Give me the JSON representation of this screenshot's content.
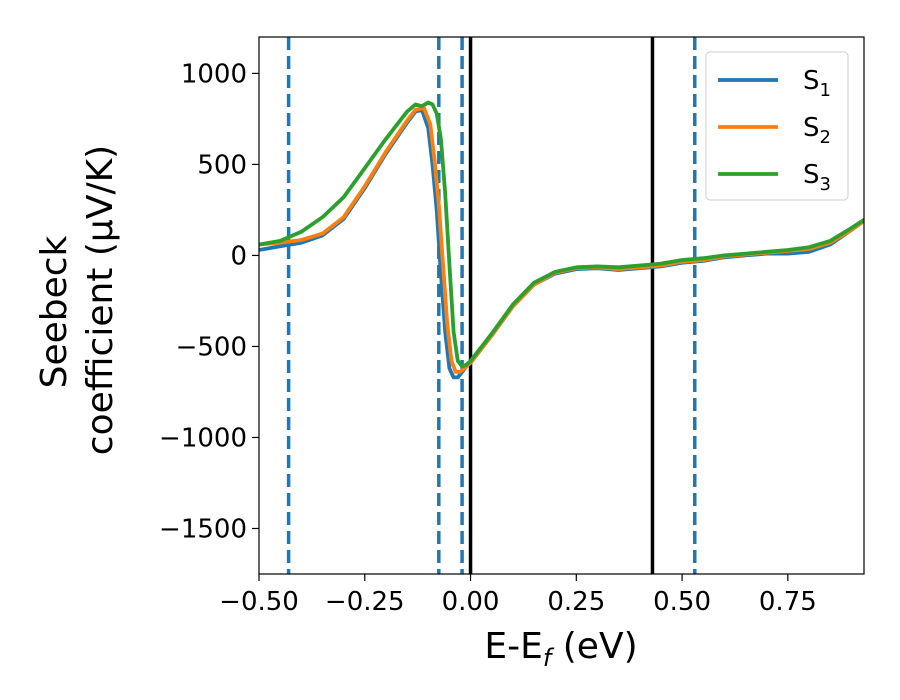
{
  "chart_data": {
    "type": "line",
    "title": "",
    "xlabel": "E-E",
    "xlabel_sub": "f",
    "xlabel_unit": " (eV)",
    "ylabel_line1": "Seebeck",
    "ylabel_line2": "coefficient  (μV/K)",
    "xlim": [
      -0.5,
      0.93
    ],
    "ylim": [
      -1750,
      1200
    ],
    "xticks": [
      -0.5,
      -0.25,
      0.0,
      0.25,
      0.5,
      0.75
    ],
    "xtick_labels": [
      "−0.50",
      "−0.25",
      "0.00",
      "0.25",
      "0.50",
      "0.75"
    ],
    "yticks": [
      1000,
      500,
      0,
      -500,
      -1000,
      -1500
    ],
    "ytick_labels": [
      "1000",
      "500",
      "0",
      "−500",
      "−1000",
      "−1500"
    ],
    "grid": false,
    "legend_position": "top-right",
    "series": [
      {
        "name": "S",
        "sub": "1",
        "color": "#1f77b4",
        "x": [
          -0.5,
          -0.45,
          -0.4,
          -0.35,
          -0.3,
          -0.25,
          -0.2,
          -0.15,
          -0.13,
          -0.115,
          -0.1,
          -0.09,
          -0.08,
          -0.07,
          -0.06,
          -0.05,
          -0.04,
          -0.03,
          -0.02,
          -0.01,
          0.0,
          0.05,
          0.1,
          0.15,
          0.2,
          0.25,
          0.3,
          0.35,
          0.4,
          0.45,
          0.5,
          0.55,
          0.6,
          0.65,
          0.7,
          0.75,
          0.8,
          0.85,
          0.9,
          0.93
        ],
        "y": [
          30,
          50,
          70,
          110,
          200,
          370,
          560,
          730,
          790,
          800,
          700,
          500,
          250,
          -100,
          -420,
          -620,
          -670,
          -670,
          -640,
          -610,
          -590,
          -440,
          -280,
          -160,
          -100,
          -75,
          -70,
          -80,
          -70,
          -60,
          -40,
          -30,
          -10,
          0,
          10,
          10,
          20,
          60,
          140,
          190
        ]
      },
      {
        "name": "S",
        "sub": "2",
        "color": "#ff7f0e",
        "x": [
          -0.5,
          -0.45,
          -0.4,
          -0.35,
          -0.3,
          -0.25,
          -0.2,
          -0.15,
          -0.13,
          -0.11,
          -0.095,
          -0.085,
          -0.075,
          -0.065,
          -0.055,
          -0.045,
          -0.035,
          -0.025,
          -0.015,
          0.0,
          0.05,
          0.1,
          0.15,
          0.2,
          0.25,
          0.3,
          0.35,
          0.4,
          0.45,
          0.5,
          0.55,
          0.6,
          0.65,
          0.7,
          0.75,
          0.8,
          0.85,
          0.9,
          0.93
        ],
        "y": [
          60,
          70,
          85,
          120,
          210,
          380,
          570,
          740,
          800,
          810,
          720,
          520,
          280,
          -50,
          -380,
          -580,
          -640,
          -640,
          -620,
          -590,
          -440,
          -280,
          -160,
          -95,
          -70,
          -65,
          -75,
          -65,
          -55,
          -35,
          -25,
          -5,
          5,
          15,
          25,
          35,
          70,
          140,
          190
        ]
      },
      {
        "name": "S",
        "sub": "3",
        "color": "#2ca02c",
        "x": [
          -0.5,
          -0.45,
          -0.4,
          -0.35,
          -0.3,
          -0.25,
          -0.2,
          -0.15,
          -0.13,
          -0.115,
          -0.1,
          -0.09,
          -0.08,
          -0.07,
          -0.06,
          -0.05,
          -0.04,
          -0.03,
          -0.02,
          -0.01,
          0.0,
          0.05,
          0.1,
          0.15,
          0.2,
          0.25,
          0.3,
          0.35,
          0.4,
          0.45,
          0.5,
          0.55,
          0.6,
          0.65,
          0.7,
          0.75,
          0.8,
          0.85,
          0.9,
          0.93
        ],
        "y": [
          60,
          80,
          130,
          210,
          320,
          480,
          640,
          790,
          830,
          820,
          840,
          830,
          780,
          640,
          340,
          -50,
          -420,
          -580,
          -610,
          -600,
          -580,
          -430,
          -270,
          -150,
          -90,
          -65,
          -60,
          -65,
          -55,
          -45,
          -25,
          -15,
          0,
          10,
          20,
          30,
          45,
          80,
          150,
          195
        ]
      }
    ],
    "vlines": [
      {
        "x": -0.43,
        "style": "dashed",
        "color": "#1f77b4"
      },
      {
        "x": -0.075,
        "style": "dashed",
        "color": "#1f77b4"
      },
      {
        "x": -0.02,
        "style": "dashed",
        "color": "#1f77b4"
      },
      {
        "x": 0.0,
        "style": "solid",
        "color": "#000000"
      },
      {
        "x": 0.43,
        "style": "solid",
        "color": "#000000"
      },
      {
        "x": 0.53,
        "style": "dashed",
        "color": "#1f77b4"
      }
    ]
  }
}
